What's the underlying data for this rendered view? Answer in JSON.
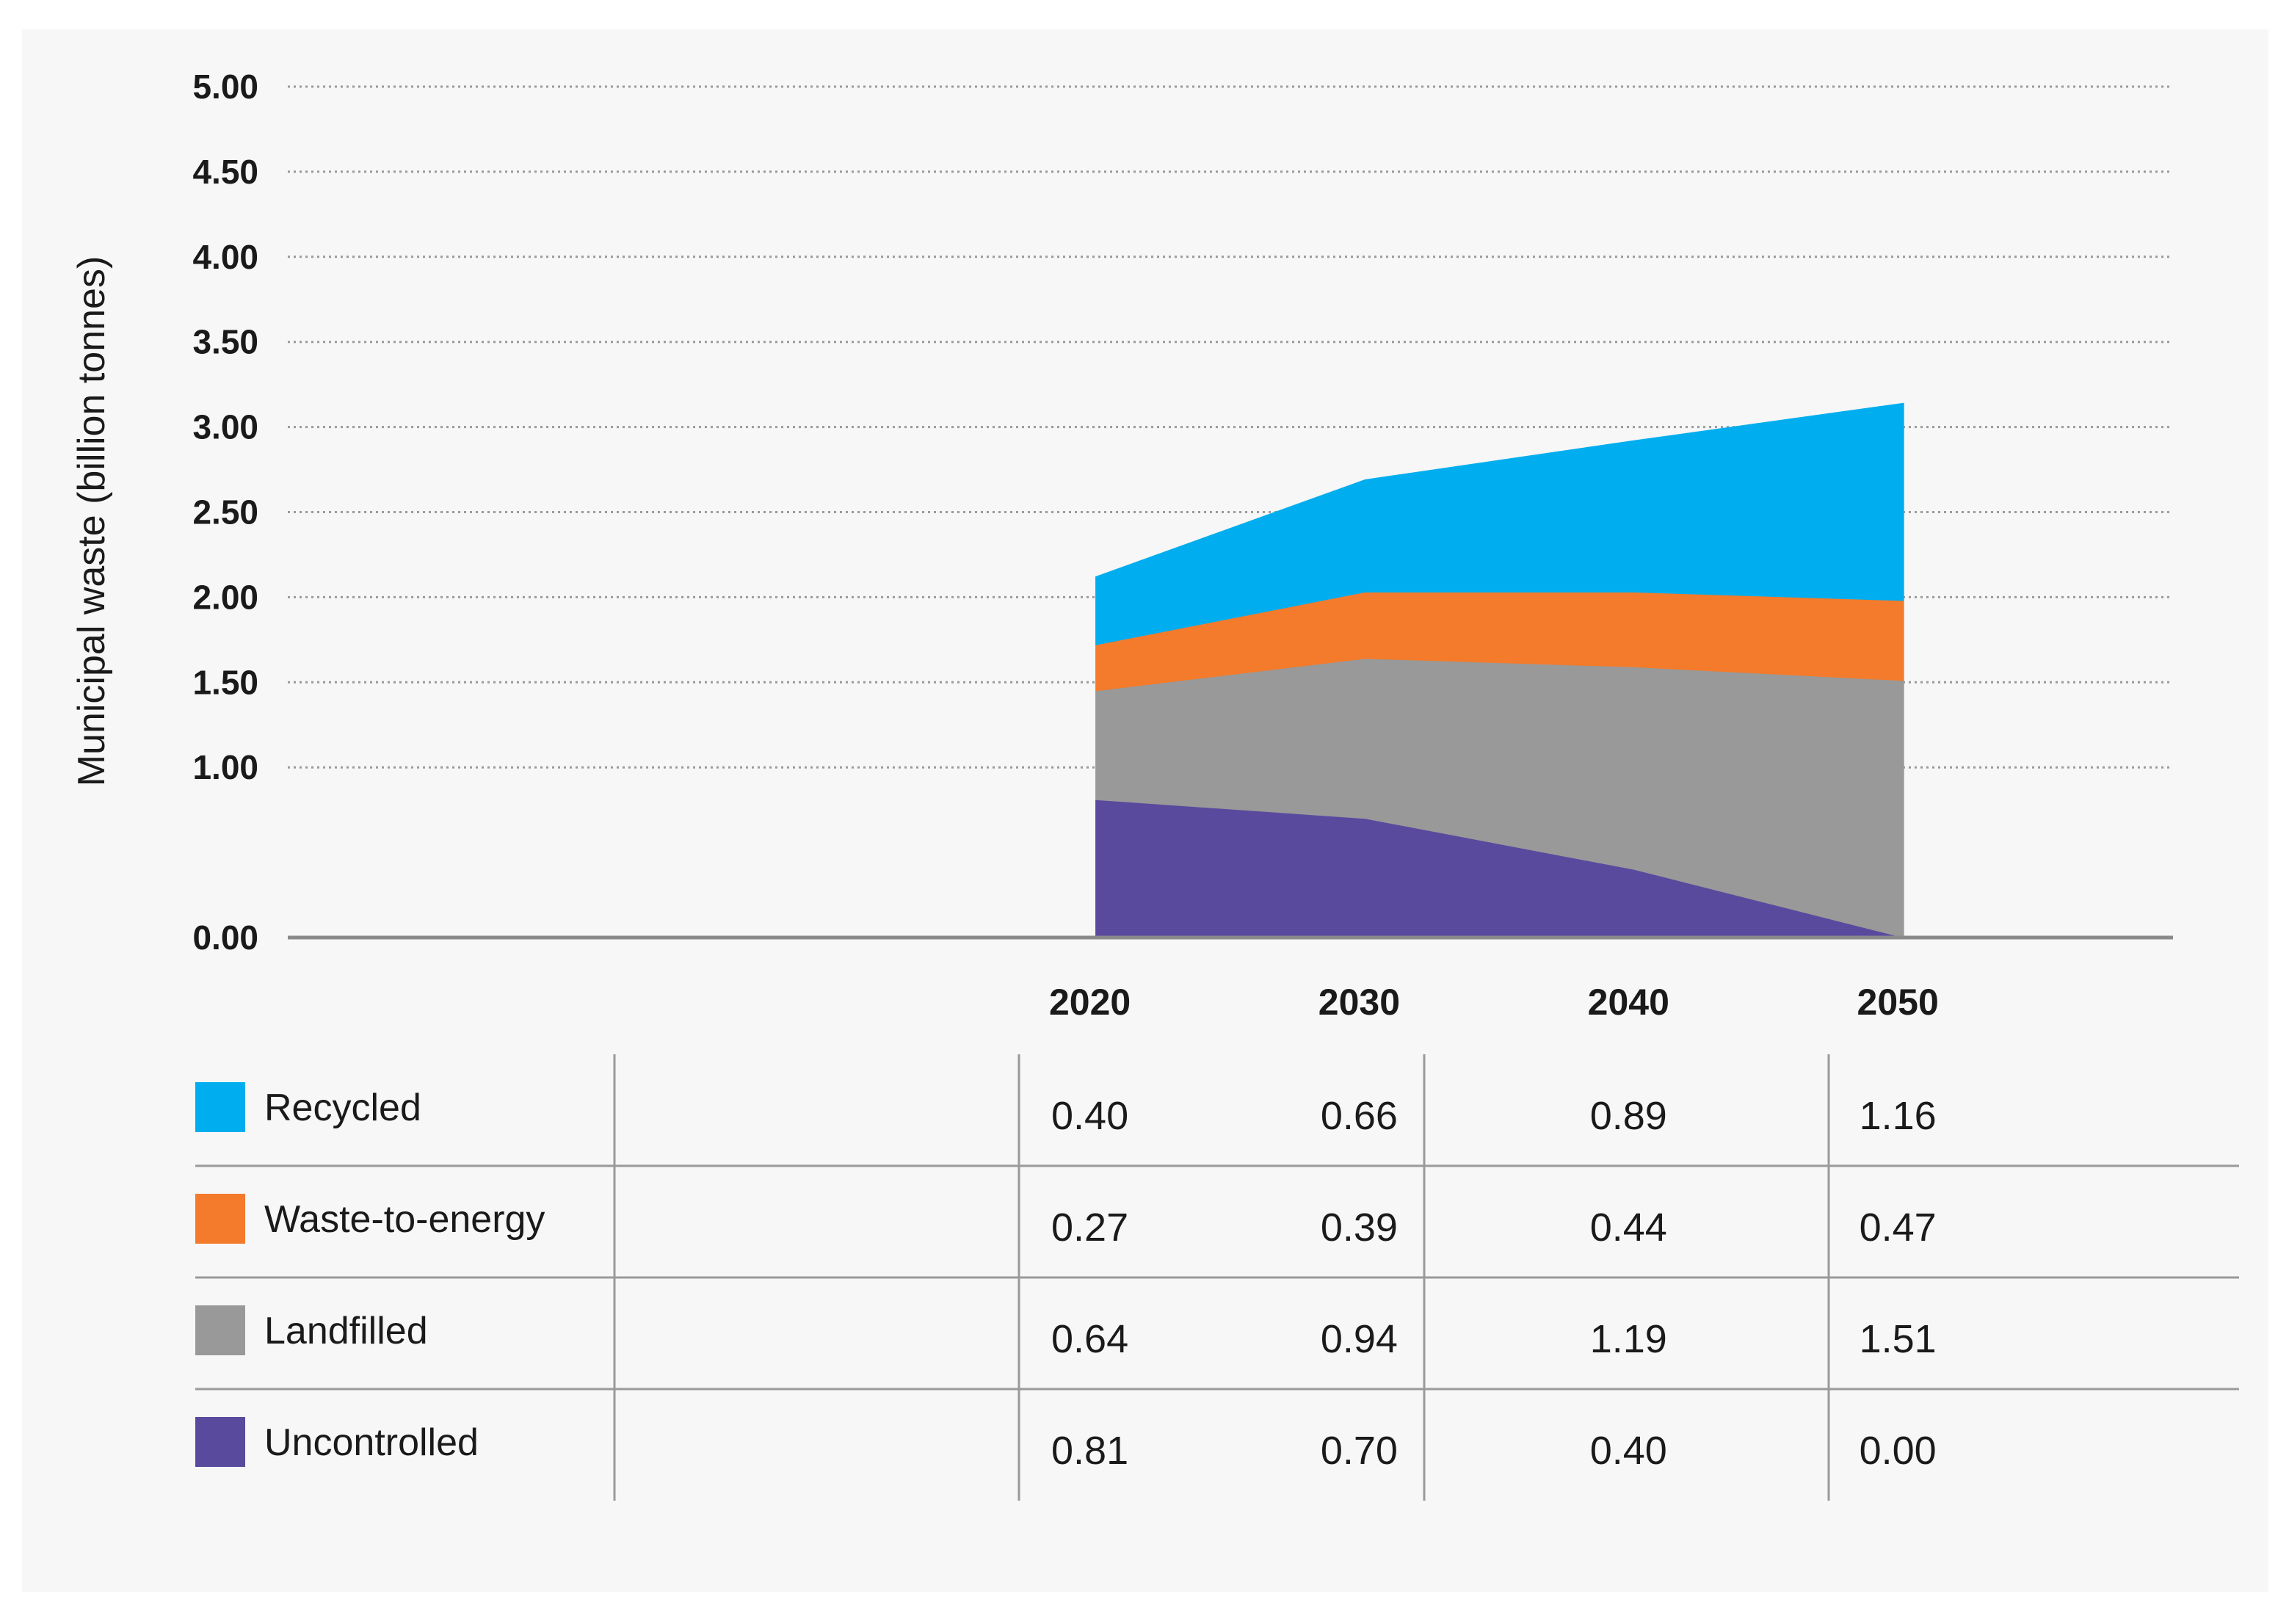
{
  "chart_data": {
    "type": "area",
    "stacked": true,
    "ylabel": "Municipal waste (billion tonnes)",
    "xlabel": "",
    "ylim": [
      0,
      5
    ],
    "yticks": [
      "0.00",
      "1.00",
      "1.50",
      "2.00",
      "2.50",
      "3.00",
      "3.50",
      "4.00",
      "4.50",
      "5.00"
    ],
    "grid": true,
    "x_range": [
      1990,
      2060
    ],
    "x": [
      "2020",
      "2030",
      "2040",
      "2050"
    ],
    "series": [
      {
        "name": "Uncontrolled",
        "color": "#5a4a9e",
        "values": [
          0.81,
          0.7,
          0.4,
          0.0
        ],
        "labels": [
          "0.81",
          "0.70",
          "0.40",
          "0.00"
        ]
      },
      {
        "name": "Landfilled",
        "color": "#999999",
        "values": [
          0.64,
          0.94,
          1.19,
          1.51
        ],
        "labels": [
          "0.64",
          "0.94",
          "1.19",
          "1.51"
        ]
      },
      {
        "name": "Waste-to-energy",
        "color": "#f37b2b",
        "values": [
          0.27,
          0.39,
          0.44,
          0.47
        ],
        "labels": [
          "0.27",
          "0.39",
          "0.44",
          "0.47"
        ]
      },
      {
        "name": "Recycled",
        "color": "#00aeef",
        "values": [
          0.4,
          0.66,
          0.89,
          1.16
        ],
        "labels": [
          "0.40",
          "0.66",
          "0.89",
          "1.16"
        ]
      }
    ],
    "table_row_order": [
      "Recycled",
      "Waste-to-energy",
      "Landfilled",
      "Uncontrolled"
    ]
  }
}
